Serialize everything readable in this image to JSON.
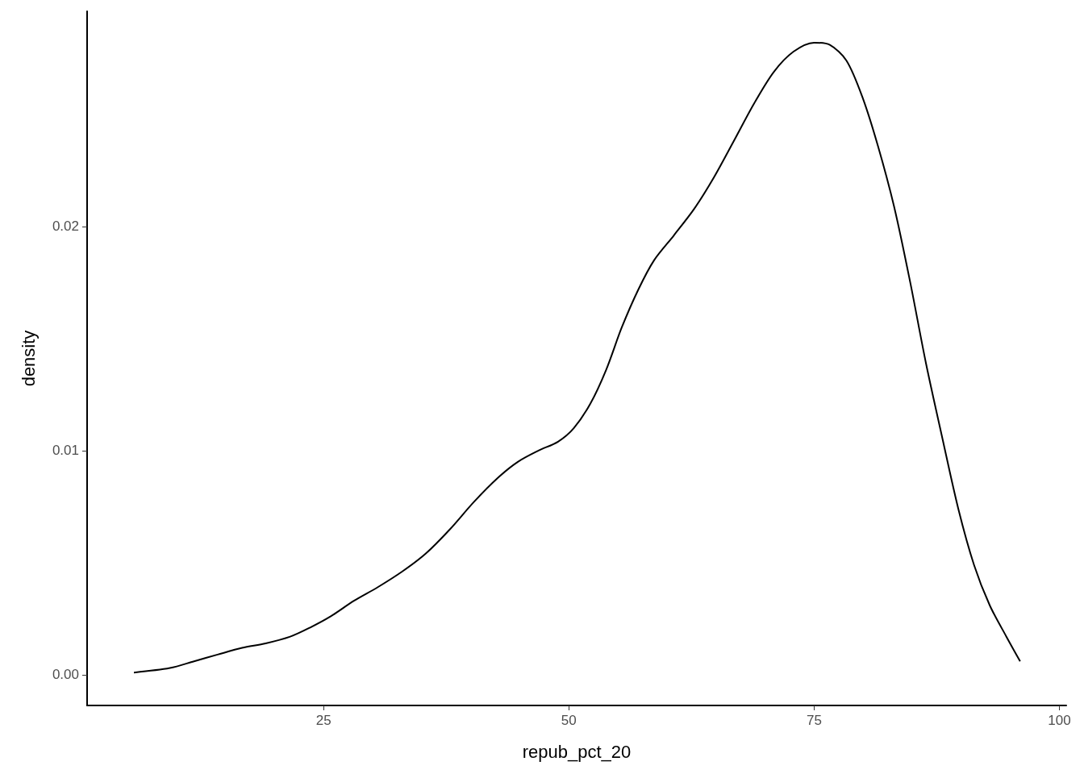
{
  "chart_data": {
    "type": "line",
    "xlabel": "repub_pct_20",
    "ylabel": "density",
    "x": [
      5.67,
      9.34,
      11.8,
      14.2,
      16.7,
      19.1,
      21.6,
      23.6,
      25.7,
      28.1,
      30.5,
      33.0,
      35.4,
      37.9,
      40.3,
      42.8,
      44.8,
      46.9,
      48.9,
      50.5,
      52.2,
      53.8,
      55.4,
      57.1,
      58.7,
      60.7,
      62.8,
      64.8,
      66.8,
      68.9,
      70.9,
      72.9,
      75.0,
      76.6,
      78.3,
      79.9,
      81.5,
      83.2,
      84.8,
      86.4,
      88.1,
      89.7,
      91.3,
      92.9,
      94.6,
      96.0
    ],
    "series": [
      {
        "color": "#000000",
        "values": [
          0.0001,
          0.0003,
          0.0006,
          0.0009,
          0.0012,
          0.0014,
          0.0017,
          0.0021,
          0.0026,
          0.0033,
          0.0039,
          0.0046,
          0.0054,
          0.0065,
          0.0077,
          0.0088,
          0.0095,
          0.01,
          0.0104,
          0.011,
          0.0121,
          0.0136,
          0.0155,
          0.0172,
          0.0185,
          0.0196,
          0.0208,
          0.0222,
          0.0238,
          0.0255,
          0.0269,
          0.0278,
          0.0282,
          0.0281,
          0.0274,
          0.0258,
          0.0236,
          0.0208,
          0.0175,
          0.0139,
          0.0105,
          0.0074,
          0.0049,
          0.0031,
          0.0017,
          0.0006
        ]
      }
    ],
    "xlim": [
      0.9,
      100.7
    ],
    "xticks": [
      25,
      50,
      75,
      100
    ],
    "ylim": [
      -0.00137,
      0.0296
    ],
    "yticks": [
      {
        "value": 0,
        "label": "0.00"
      },
      {
        "value": 0.01,
        "label": "0.01"
      },
      {
        "value": 0.02,
        "label": "0.02"
      }
    ],
    "grid": false,
    "marker": "none",
    "line_style": "solid"
  }
}
